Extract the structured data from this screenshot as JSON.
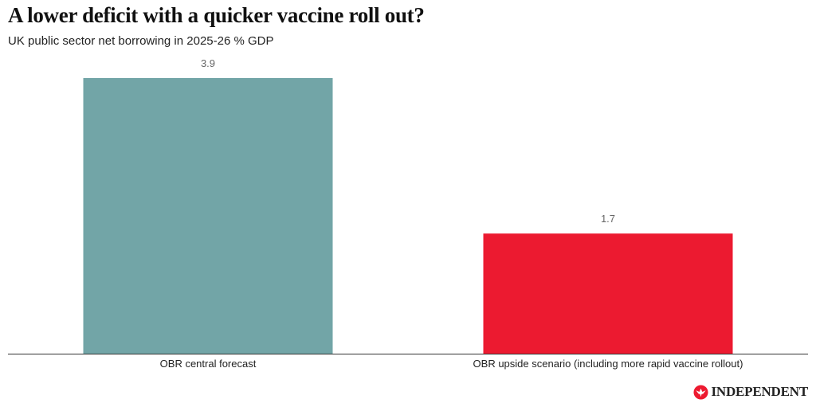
{
  "header": {
    "title": "A lower deficit with a quicker vaccine roll out?",
    "subtitle": "UK public sector net borrowing in 2025-26 % GDP"
  },
  "brand": {
    "name": "INDEPENDENT",
    "icon": "eagle-logo-icon",
    "color": "#ED1A30"
  },
  "chart_data": {
    "type": "bar",
    "title": "A lower deficit with a quicker vaccine roll out?",
    "subtitle": "UK public sector net borrowing in 2025-26 % GDP",
    "categories": [
      "OBR central forecast",
      "OBR upside scenario (including more rapid vaccine rollout)"
    ],
    "values": [
      3.9,
      1.7
    ],
    "value_labels": [
      "3.9",
      "1.7"
    ],
    "colors": [
      "#72A5A7",
      "#EC1A30"
    ],
    "xlabel": "",
    "ylabel": "",
    "ylim": [
      0,
      3.9
    ],
    "grid": false,
    "legend": "none"
  }
}
